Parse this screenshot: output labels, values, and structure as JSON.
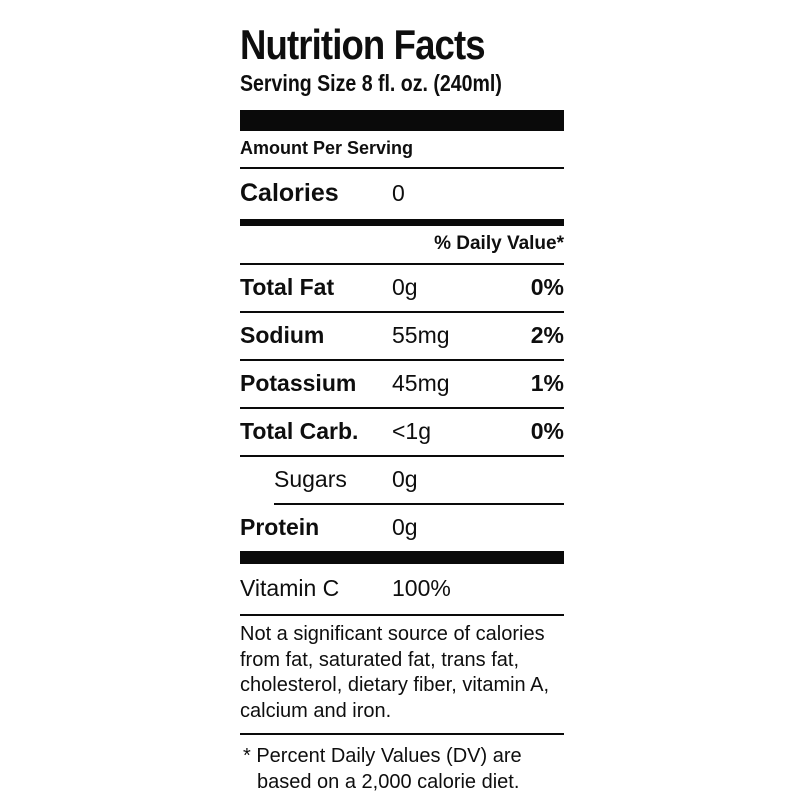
{
  "label": {
    "title": "Nutrition Facts",
    "serving_size": "Serving Size 8 fl. oz. (240ml)",
    "amount_per_serving": "Amount Per Serving",
    "calories": {
      "name": "Calories",
      "value": "0"
    },
    "daily_value_header": "% Daily Value*",
    "nutrients": [
      {
        "name": "Total Fat",
        "amount": "0g",
        "dv": "0%"
      },
      {
        "name": "Sodium",
        "amount": "55mg",
        "dv": "2%"
      },
      {
        "name": "Potassium",
        "amount": "45mg",
        "dv": "1%"
      },
      {
        "name": "Total Carb.",
        "amount": "<1g",
        "dv": "0%"
      },
      {
        "name": "Sugars",
        "amount": "0g",
        "dv": ""
      },
      {
        "name": "Protein",
        "amount": "0g",
        "dv": ""
      }
    ],
    "vitamins": [
      {
        "name": "Vitamin C",
        "value": "100%"
      }
    ],
    "footnote_sources": "Not a significant source of calories from fat, saturated fat, trans fat, cholesterol, dietary fiber, vitamin A, calcium and iron.",
    "footnote_daily_values": "* Percent Daily Values (DV) are based on a 2,000 calorie diet.",
    "colors": {
      "text": "#0e0e0e",
      "bar": "#0a0a0a",
      "background": "#ffffff"
    }
  }
}
